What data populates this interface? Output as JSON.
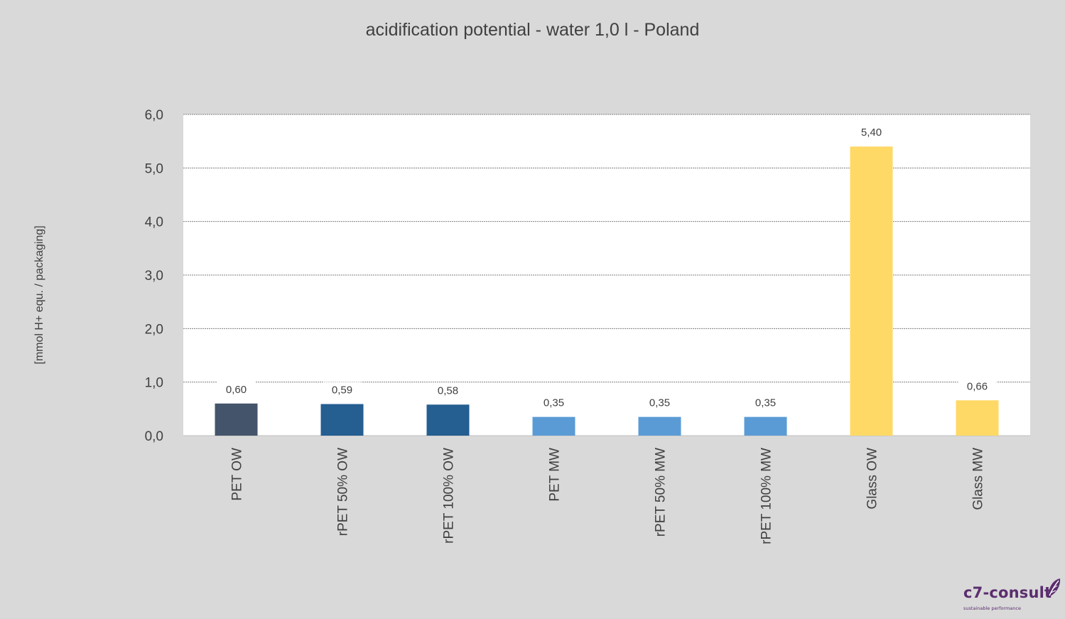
{
  "chart_data": {
    "type": "bar",
    "title": "acidification potential - water 1,0 l - Poland",
    "ylabel": "[mmol H+ equ. / packaging]",
    "xlabel": "",
    "categories": [
      "PET OW",
      "rPET 50% OW",
      "rPET 100% OW",
      "PET MW",
      "rPET 50% MW",
      "rPET 100% MW",
      "Glass OW",
      "Glass MW"
    ],
    "values": [
      0.6,
      0.59,
      0.58,
      0.35,
      0.35,
      0.35,
      5.4,
      0.66
    ],
    "data_labels": [
      "0,60",
      "0,59",
      "0,58",
      "0,35",
      "0,35",
      "0,35",
      "5,40",
      "0,66"
    ],
    "bar_colors": [
      "#44546a",
      "#255e91",
      "#255e91",
      "#5b9bd5",
      "#5b9bd5",
      "#5b9bd5",
      "#ffd966",
      "#ffd966"
    ],
    "ylim": [
      0,
      6
    ],
    "yticks": [
      0,
      1,
      2,
      3,
      4,
      5,
      6
    ],
    "ytick_labels": [
      "0,0",
      "1,0",
      "2,0",
      "3,0",
      "4,0",
      "5,0",
      "6,0"
    ],
    "grid": true,
    "legend": "none",
    "plot_background": "#ffffff",
    "page_background": "#d9d9d9"
  },
  "logo": {
    "name": "c7-consult",
    "tagline": "sustainable performance",
    "color": "#5b2d6e"
  }
}
